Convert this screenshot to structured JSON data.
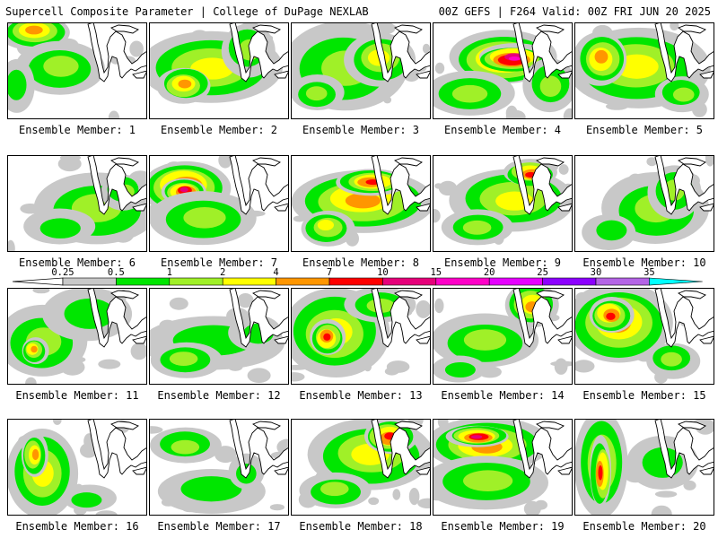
{
  "header": {
    "left_title": "Supercell Composite Parameter | College of DuPage NEXLAB",
    "right_title": "00Z GEFS | F264 Valid: 00Z FRI JUN 20 2025"
  },
  "legend": {
    "ticks": [
      "0.25",
      "0.5",
      "1",
      "2",
      "4",
      "7",
      "10",
      "15",
      "20",
      "25",
      "30",
      "35"
    ],
    "colors": [
      "#c8c8c8",
      "#00e600",
      "#a0f028",
      "#ffff00",
      "#ff9600",
      "#ff0000",
      "#e6007a",
      "#ff00c8",
      "#e600ff",
      "#8c00ff",
      "#b464e6",
      "#00ffff"
    ]
  },
  "members": [
    {
      "label": "Ensemble Member: 1"
    },
    {
      "label": "Ensemble Member: 2"
    },
    {
      "label": "Ensemble Member: 3"
    },
    {
      "label": "Ensemble Member: 4"
    },
    {
      "label": "Ensemble Member: 5"
    },
    {
      "label": "Ensemble Member: 6"
    },
    {
      "label": "Ensemble Member: 7"
    },
    {
      "label": "Ensemble Member: 8"
    },
    {
      "label": "Ensemble Member: 9"
    },
    {
      "label": "Ensemble Member: 10"
    },
    {
      "label": "Ensemble Member: 11"
    },
    {
      "label": "Ensemble Member: 12"
    },
    {
      "label": "Ensemble Member: 13"
    },
    {
      "label": "Ensemble Member: 14"
    },
    {
      "label": "Ensemble Member: 15"
    },
    {
      "label": "Ensemble Member: 16"
    },
    {
      "label": "Ensemble Member: 17"
    },
    {
      "label": "Ensemble Member: 18"
    },
    {
      "label": "Ensemble Member: 19"
    },
    {
      "label": "Ensemble Member: 20"
    }
  ]
}
